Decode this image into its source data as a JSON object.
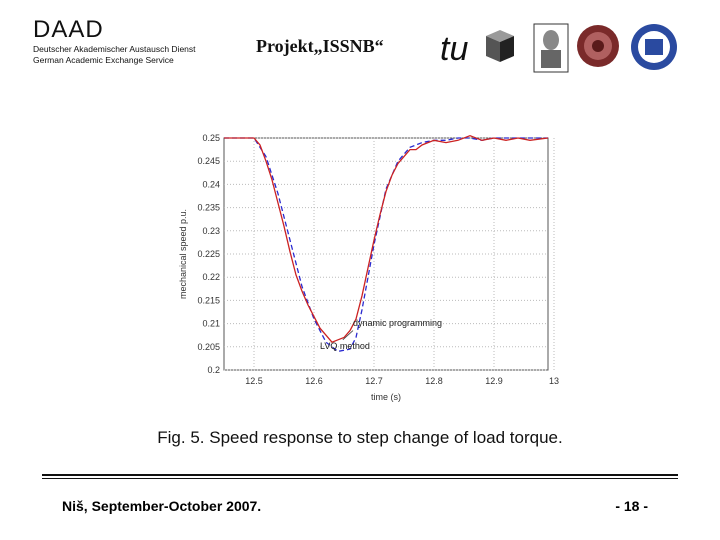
{
  "header": {
    "org_name": "DAAD",
    "org_line_de": "Deutscher Akademischer Austausch Dienst",
    "org_line_en": "German Academic Exchange Service",
    "project_title": "Projekt„ISSNB“"
  },
  "chart_data": {
    "type": "line",
    "title": "",
    "xlabel": "time (s)",
    "ylabel": "mechanical speed p.u.",
    "xlim": [
      12.45,
      12.99
    ],
    "ylim": [
      0.2,
      0.25
    ],
    "x_ticks": [
      "12.5",
      "12.6",
      "12.7",
      "12.8",
      "12.9",
      "13"
    ],
    "y_ticks": [
      "0.25",
      "0.245",
      "0.24",
      "0.235",
      "0.23",
      "0.225",
      "0.22",
      "0.215",
      "0.21",
      "0.205",
      "0.2"
    ],
    "grid": true,
    "series": [
      {
        "name": "dynamic programming",
        "color": "#2a2ad0",
        "style": "dashed",
        "x": [
          12.45,
          12.5,
          12.52,
          12.54,
          12.56,
          12.58,
          12.6,
          12.62,
          12.64,
          12.66,
          12.67,
          12.68,
          12.7,
          12.72,
          12.74,
          12.76,
          12.78,
          12.8,
          12.82,
          12.84,
          12.86,
          12.88,
          12.9,
          12.93,
          12.96,
          12.99
        ],
        "y": [
          0.25,
          0.25,
          0.246,
          0.238,
          0.228,
          0.218,
          0.211,
          0.206,
          0.204,
          0.2045,
          0.207,
          0.213,
          0.227,
          0.239,
          0.245,
          0.248,
          0.249,
          0.2495,
          0.2495,
          0.25,
          0.25,
          0.2495,
          0.25,
          0.25,
          0.25,
          0.25
        ]
      },
      {
        "name": "LVQ method",
        "color": "#cc2222",
        "style": "solid",
        "x": [
          12.45,
          12.5,
          12.51,
          12.52,
          12.53,
          12.54,
          12.55,
          12.56,
          12.57,
          12.58,
          12.59,
          12.6,
          12.61,
          12.62,
          12.63,
          12.64,
          12.65,
          12.66,
          12.67,
          12.68,
          12.69,
          12.7,
          12.71,
          12.72,
          12.73,
          12.74,
          12.75,
          12.76,
          12.77,
          12.78,
          12.79,
          12.8,
          12.82,
          12.84,
          12.86,
          12.88,
          12.9,
          12.92,
          12.94,
          12.96,
          12.99
        ],
        "y": [
          0.25,
          0.25,
          0.2485,
          0.245,
          0.241,
          0.236,
          0.231,
          0.2255,
          0.2205,
          0.217,
          0.214,
          0.2115,
          0.209,
          0.2075,
          0.206,
          0.2065,
          0.207,
          0.2085,
          0.211,
          0.216,
          0.222,
          0.228,
          0.2335,
          0.2385,
          0.242,
          0.2445,
          0.246,
          0.2475,
          0.2475,
          0.2485,
          0.249,
          0.2495,
          0.249,
          0.2495,
          0.2505,
          0.2495,
          0.25,
          0.2495,
          0.25,
          0.2495,
          0.25
        ]
      }
    ],
    "annotations": [
      "dynamic programming",
      "LVQ method"
    ]
  },
  "caption": "Fig. 5. Speed response to  step change  of load torque.",
  "footer": {
    "left": "Niš, September-October 2007.",
    "right": "- 18 -"
  }
}
